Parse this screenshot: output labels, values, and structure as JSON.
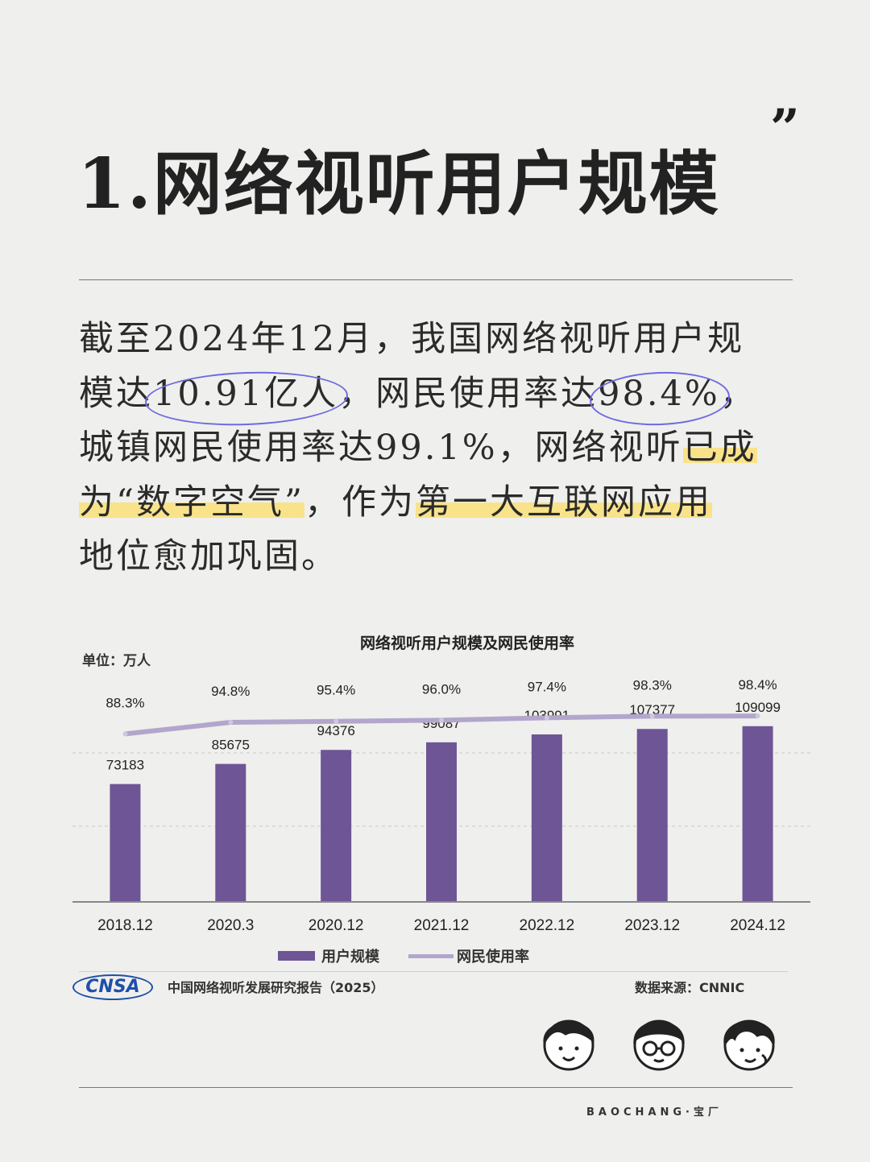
{
  "header": {
    "quote_mark": "”",
    "title": "1.网络视听用户规模"
  },
  "paragraph": {
    "l1": "截至2024年12月，我国网络视听用户规",
    "l2a": "模达",
    "l2b": "10.91亿人",
    "l2c": "，网民使用率达",
    "l2d": "98.4%",
    "l2e": "，",
    "l3a": "城镇网民使用率达99.1%，网络视听",
    "l3b": "已成",
    "l4a": "为“数字空气”",
    "l4b": "，作为",
    "l4c": "第一大互联网应用",
    "l5": "地位愈加巩固。"
  },
  "chart_data": {
    "type": "bar",
    "title": "网络视听用户规模及网民使用率",
    "unit": "单位：万人",
    "categories": [
      "2018.12",
      "2020.3",
      "2020.12",
      "2021.12",
      "2022.12",
      "2023.12",
      "2024.12"
    ],
    "series": [
      {
        "name": "用户规模",
        "type": "bar",
        "values": [
          73183,
          85675,
          94376,
          99087,
          103991,
          107377,
          109099
        ],
        "labels": [
          "73183",
          "85675",
          "94376",
          "99087",
          "103991",
          "107377",
          "109099"
        ]
      },
      {
        "name": "网民使用率",
        "type": "line",
        "values": [
          88.3,
          94.8,
          95.4,
          96.0,
          97.4,
          98.3,
          98.4
        ],
        "labels": [
          "88.3%",
          "94.8%",
          "95.4%",
          "96.0%",
          "97.4%",
          "98.3%",
          "98.4%"
        ]
      }
    ],
    "ylim_bar": [
      0,
      140000
    ],
    "grid": true,
    "legend": "bottom",
    "colors": {
      "bar": "#6e5596",
      "line": "#b3a6cc"
    }
  },
  "source": {
    "logo_text": "CNSA",
    "report": "中国网络视听发展研究报告（2025）",
    "data_source": "数据来源：CNNIC"
  },
  "footer": {
    "brand": "BAOCHANG·宝厂"
  }
}
